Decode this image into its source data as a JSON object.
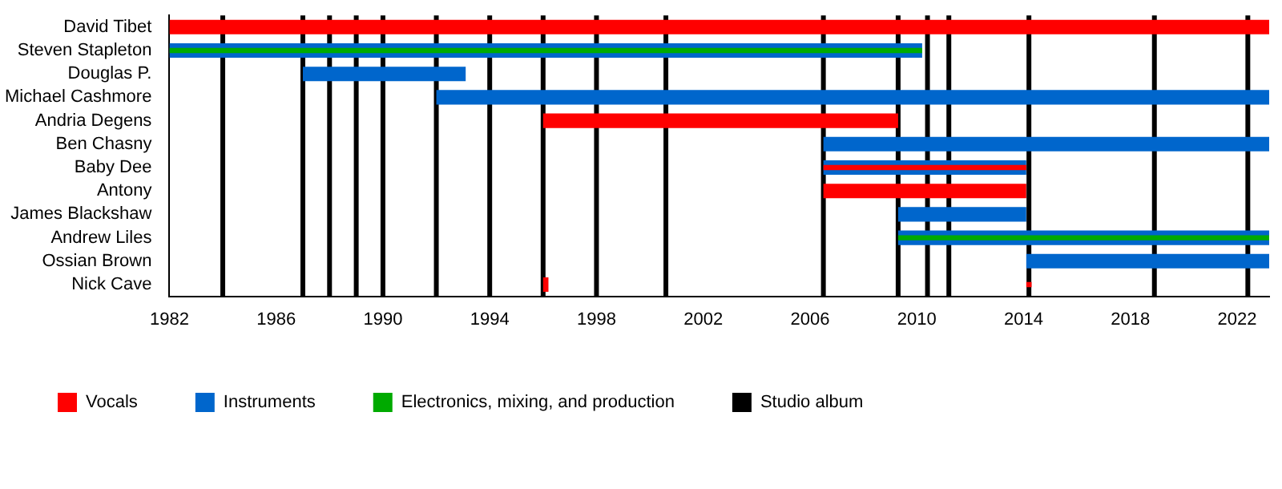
{
  "chart_data": {
    "type": "bar",
    "orientation": "horizontal",
    "legend": "bottom",
    "grid": false,
    "categories": [
      "David Tibet",
      "Steven Stapleton",
      "Douglas P.",
      "Michael Cashmore",
      "Andria Degens",
      "Ben Chasny",
      "Baby Dee",
      "Antony",
      "James Blackshaw",
      "Andrew Liles",
      "Ossian Brown",
      "Nick Cave"
    ],
    "series": [
      {
        "name": "Vocals",
        "color": "#ff0000",
        "values": [
          41.2,
          null,
          null,
          null,
          13.3,
          null,
          7.6,
          7.6,
          null,
          null,
          null,
          0.2
        ],
        "base": [
          1982,
          null,
          null,
          null,
          1996,
          null,
          2006.5,
          2006.5,
          null,
          null,
          null,
          1996
        ]
      },
      {
        "name": "Instruments",
        "color": "#0066cc",
        "values": [
          null,
          28.2,
          6.1,
          31.2,
          null,
          16.7,
          7.6,
          null,
          4.8,
          13.9,
          9.1,
          null
        ],
        "base": [
          null,
          1982,
          1987,
          1992,
          null,
          2006.5,
          2006.5,
          null,
          2009.3,
          2009.3,
          2014.1,
          null
        ]
      },
      {
        "name": "Electronics, mixing, and production",
        "color": "#00aa00",
        "values": [
          null,
          28.2,
          null,
          null,
          null,
          null,
          null,
          null,
          null,
          13.9,
          null,
          null
        ],
        "base": [
          null,
          1982,
          null,
          null,
          null,
          null,
          null,
          null,
          null,
          2009.3,
          null,
          null
        ]
      },
      {
        "color": "#ff0000",
        "values": [
          null,
          null,
          null,
          null,
          null,
          null,
          null,
          null,
          null,
          null,
          null,
          0.2
        ],
        "base": [
          null,
          null,
          null,
          null,
          null,
          null,
          null,
          null,
          null,
          null,
          null,
          2014.1
        ]
      }
    ],
    "xlim": [
      1982,
      2023.2
    ],
    "xticks": [
      1982,
      1986,
      1990,
      1994,
      1998,
      2002,
      2006,
      2010,
      2014,
      2018,
      2022
    ],
    "ref_lines": [
      {
        "axis": "x",
        "value": 1984,
        "label": "Studio album",
        "color": "#000000"
      },
      {
        "axis": "x",
        "value": 1987,
        "color": "#000000"
      },
      {
        "axis": "x",
        "value": 1988,
        "color": "#000000"
      },
      {
        "axis": "x",
        "value": 1989,
        "color": "#000000"
      },
      {
        "axis": "x",
        "value": 1990,
        "color": "#000000"
      },
      {
        "axis": "x",
        "value": 1992,
        "color": "#000000"
      },
      {
        "axis": "x",
        "value": 1994,
        "color": "#000000"
      },
      {
        "axis": "x",
        "value": 1996,
        "color": "#000000"
      },
      {
        "axis": "x",
        "value": 1998,
        "color": "#000000"
      },
      {
        "axis": "x",
        "value": 2000.6,
        "color": "#000000"
      },
      {
        "axis": "x",
        "value": 2006.5,
        "color": "#000000"
      },
      {
        "axis": "x",
        "value": 2009.3,
        "color": "#000000"
      },
      {
        "axis": "x",
        "value": 2010.4,
        "color": "#000000"
      },
      {
        "axis": "x",
        "value": 2011.2,
        "color": "#000000"
      },
      {
        "axis": "x",
        "value": 2014.2,
        "color": "#000000"
      },
      {
        "axis": "x",
        "value": 2018.9,
        "color": "#000000"
      },
      {
        "axis": "x",
        "value": 2022.4,
        "color": "#000000"
      }
    ]
  }
}
